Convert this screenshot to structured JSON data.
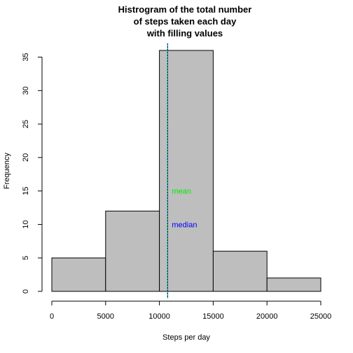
{
  "chart_data": {
    "type": "bar",
    "title_lines": [
      "Histrogram of the total number",
      "of steps taken each day",
      "with filling values"
    ],
    "xlabel": "Steps per day",
    "ylabel": "Frequency",
    "bins": [
      {
        "from": 0,
        "to": 5000,
        "count": 5
      },
      {
        "from": 5000,
        "to": 10000,
        "count": 12
      },
      {
        "from": 10000,
        "to": 15000,
        "count": 36
      },
      {
        "from": 15000,
        "to": 20000,
        "count": 6
      },
      {
        "from": 20000,
        "to": 25000,
        "count": 2
      }
    ],
    "xlim": [
      0,
      25000
    ],
    "ylim": [
      0,
      36
    ],
    "x_ticks": [
      0,
      5000,
      10000,
      15000,
      20000,
      25000
    ],
    "y_ticks": [
      0,
      5,
      10,
      15,
      20,
      25,
      30,
      35
    ],
    "bar_color": "#bebebe",
    "annotations": [
      {
        "text": "mean",
        "x": 10766,
        "y": 15,
        "color": "#00ee00"
      },
      {
        "text": "median",
        "x": 10766,
        "y": 10,
        "color": "#0000ff"
      }
    ],
    "vlines": [
      {
        "name": "mean",
        "x": 10766,
        "color": "#00cc00",
        "style": "solid"
      },
      {
        "name": "median",
        "x": 10766,
        "color": "#0000ff",
        "style": "dotted"
      }
    ]
  }
}
